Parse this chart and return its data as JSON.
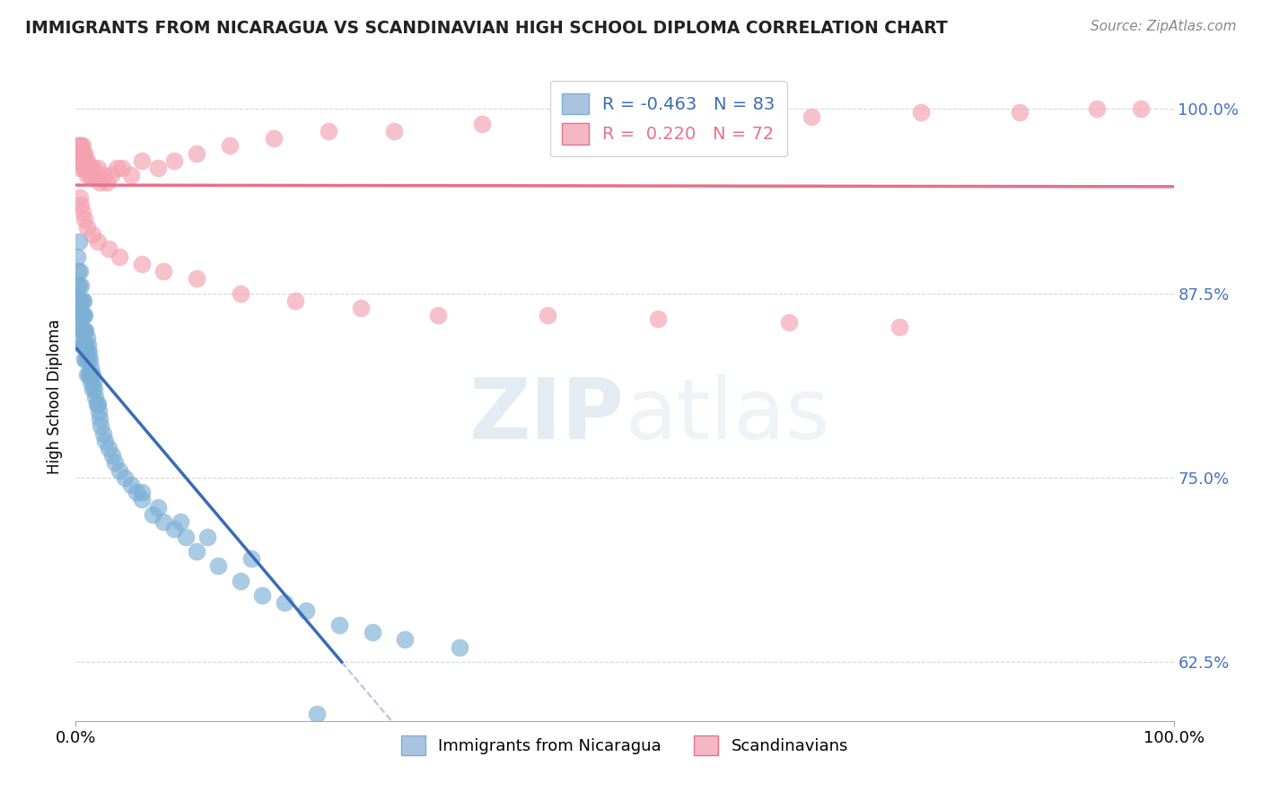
{
  "title": "IMMIGRANTS FROM NICARAGUA VS SCANDINAVIAN HIGH SCHOOL DIPLOMA CORRELATION CHART",
  "source": "Source: ZipAtlas.com",
  "ylabel": "High School Diploma",
  "watermark": "ZIPAtlas",
  "blue_label": "Immigrants from Nicaragua",
  "pink_label": "Scandinavians",
  "blue_R": -0.463,
  "blue_N": 83,
  "pink_R": 0.22,
  "pink_N": 72,
  "blue_color": "#7bafd4",
  "pink_color": "#f4a0b0",
  "blue_line_color": "#3a6cb5",
  "pink_line_color": "#e8708a",
  "xlim": [
    0.0,
    1.0
  ],
  "ylim": [
    0.585,
    1.025
  ],
  "yticks": [
    0.625,
    0.75,
    0.875,
    1.0
  ],
  "ytick_labels": [
    "62.5%",
    "75.0%",
    "87.5%",
    "100.0%"
  ],
  "blue_scatter_x": [
    0.001,
    0.001,
    0.002,
    0.002,
    0.002,
    0.003,
    0.003,
    0.003,
    0.003,
    0.004,
    0.004,
    0.004,
    0.004,
    0.005,
    0.005,
    0.005,
    0.005,
    0.005,
    0.006,
    0.006,
    0.006,
    0.007,
    0.007,
    0.007,
    0.007,
    0.008,
    0.008,
    0.008,
    0.008,
    0.009,
    0.009,
    0.009,
    0.01,
    0.01,
    0.01,
    0.011,
    0.011,
    0.012,
    0.012,
    0.013,
    0.013,
    0.014,
    0.014,
    0.015,
    0.015,
    0.016,
    0.017,
    0.018,
    0.019,
    0.02,
    0.021,
    0.022,
    0.023,
    0.025,
    0.027,
    0.03,
    0.033,
    0.036,
    0.04,
    0.045,
    0.05,
    0.055,
    0.06,
    0.07,
    0.08,
    0.09,
    0.1,
    0.11,
    0.13,
    0.15,
    0.17,
    0.19,
    0.21,
    0.24,
    0.27,
    0.3,
    0.22,
    0.35,
    0.06,
    0.075,
    0.095,
    0.12,
    0.16
  ],
  "blue_scatter_y": [
    0.9,
    0.88,
    0.89,
    0.87,
    0.86,
    0.91,
    0.88,
    0.87,
    0.86,
    0.89,
    0.87,
    0.86,
    0.85,
    0.88,
    0.87,
    0.86,
    0.85,
    0.84,
    0.87,
    0.86,
    0.84,
    0.87,
    0.86,
    0.85,
    0.84,
    0.86,
    0.85,
    0.84,
    0.83,
    0.85,
    0.84,
    0.83,
    0.845,
    0.835,
    0.82,
    0.84,
    0.83,
    0.835,
    0.82,
    0.83,
    0.82,
    0.825,
    0.815,
    0.82,
    0.81,
    0.815,
    0.81,
    0.805,
    0.8,
    0.8,
    0.795,
    0.79,
    0.785,
    0.78,
    0.775,
    0.77,
    0.765,
    0.76,
    0.755,
    0.75,
    0.745,
    0.74,
    0.735,
    0.725,
    0.72,
    0.715,
    0.71,
    0.7,
    0.69,
    0.68,
    0.67,
    0.665,
    0.66,
    0.65,
    0.645,
    0.64,
    0.59,
    0.635,
    0.74,
    0.73,
    0.72,
    0.71,
    0.695
  ],
  "pink_scatter_x": [
    0.001,
    0.001,
    0.002,
    0.002,
    0.003,
    0.003,
    0.003,
    0.004,
    0.004,
    0.005,
    0.005,
    0.005,
    0.006,
    0.006,
    0.007,
    0.007,
    0.008,
    0.008,
    0.009,
    0.01,
    0.01,
    0.011,
    0.012,
    0.013,
    0.014,
    0.015,
    0.016,
    0.018,
    0.02,
    0.022,
    0.025,
    0.028,
    0.032,
    0.037,
    0.042,
    0.05,
    0.06,
    0.075,
    0.09,
    0.11,
    0.14,
    0.18,
    0.23,
    0.29,
    0.37,
    0.46,
    0.56,
    0.67,
    0.77,
    0.86,
    0.93,
    0.97,
    0.004,
    0.005,
    0.006,
    0.008,
    0.01,
    0.015,
    0.02,
    0.03,
    0.04,
    0.06,
    0.08,
    0.11,
    0.15,
    0.2,
    0.26,
    0.33,
    0.43,
    0.53,
    0.65,
    0.75
  ],
  "pink_scatter_y": [
    0.975,
    0.97,
    0.975,
    0.965,
    0.975,
    0.97,
    0.96,
    0.975,
    0.965,
    0.975,
    0.97,
    0.965,
    0.975,
    0.965,
    0.97,
    0.96,
    0.97,
    0.96,
    0.965,
    0.965,
    0.955,
    0.96,
    0.96,
    0.955,
    0.96,
    0.955,
    0.96,
    0.955,
    0.96,
    0.95,
    0.955,
    0.95,
    0.955,
    0.96,
    0.96,
    0.955,
    0.965,
    0.96,
    0.965,
    0.97,
    0.975,
    0.98,
    0.985,
    0.985,
    0.99,
    0.99,
    0.995,
    0.995,
    0.998,
    0.998,
    1.0,
    1.0,
    0.94,
    0.935,
    0.93,
    0.925,
    0.92,
    0.915,
    0.91,
    0.905,
    0.9,
    0.895,
    0.89,
    0.885,
    0.875,
    0.87,
    0.865,
    0.86,
    0.86,
    0.858,
    0.855,
    0.852
  ]
}
